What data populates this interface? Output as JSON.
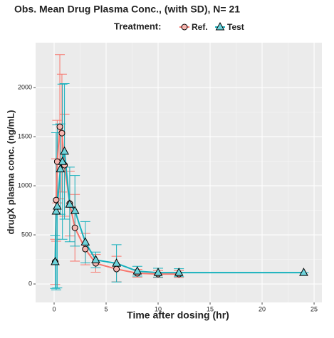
{
  "chart_data": {
    "type": "line",
    "title": "Obs. Mean Drug Plasma Conc., (with SD), N= 21",
    "legend_title": "Treatment:",
    "x_label": "Time after dosing (hr)",
    "y_label": "drugX plasma conc. (ng/mL)",
    "xlim": [
      -1.78,
      25.75
    ],
    "xticks": [
      0,
      5,
      10,
      15,
      20,
      25
    ],
    "ylim": [
      -188,
      2457
    ],
    "yticks": [
      0,
      500,
      1000,
      1500,
      2000
    ],
    "grid": true,
    "legend_position": "top",
    "series": [
      {
        "name": "Ref.",
        "color": "#f8766d",
        "marker": "circle",
        "x": [
          0.1,
          0.2,
          0.3,
          0.55,
          0.75,
          1,
          1.5,
          2,
          3,
          4,
          6,
          8,
          10,
          12
        ],
        "values": [
          225,
          855,
          1246,
          1601,
          1536,
          1210,
          819,
          572,
          355,
          210,
          152,
          109,
          101,
          101
        ],
        "sd": [
          230,
          420,
          420,
          735,
          600,
          520,
          330,
          340,
          160,
          90,
          130,
          40,
          35,
          35
        ]
      },
      {
        "name": "Test",
        "color": "#17b1bd",
        "marker": "triangle",
        "x": [
          0.1,
          0.2,
          0.3,
          0.6,
          0.8,
          1,
          1.5,
          2,
          3,
          4,
          6,
          8,
          10,
          12,
          24
        ],
        "values": [
          225,
          740,
          790,
          1170,
          1245,
          1350,
          810,
          745,
          425,
          245,
          210,
          130,
          115,
          115,
          115
        ],
        "sd": [
          270,
          800,
          830,
          460,
          790,
          690,
          380,
          360,
          210,
          80,
          190,
          50,
          45,
          40,
          0
        ]
      }
    ]
  }
}
